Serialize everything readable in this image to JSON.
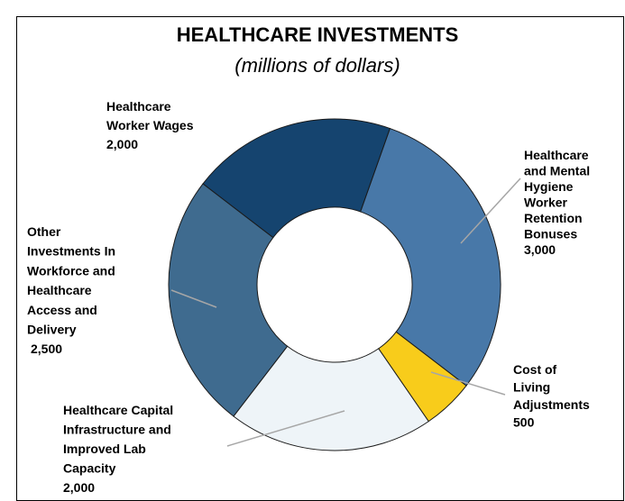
{
  "chart_data": {
    "type": "donut",
    "title": "HEALTHCARE INVESTMENTS",
    "subtitle": "(millions of dollars)",
    "categories": [
      "Healthcare Worker Wages",
      "Healthcare and Mental Hygiene Worker Retention Bonuses",
      "Cost of Living Adjustments",
      "Healthcare Capital Infrastructure and Improved Lab Capacity",
      "Other Investments In Workforce and Healthcare Access and Delivery"
    ],
    "values": [
      2000,
      3000,
      500,
      2000,
      2500
    ],
    "value_labels": [
      "2,000",
      "3,000",
      "500",
      "2,000",
      "2,500"
    ],
    "colors": [
      "#15446f",
      "#4878a8",
      "#f8cc1b",
      "#eef4f8",
      "#3f6b8f"
    ]
  }
}
